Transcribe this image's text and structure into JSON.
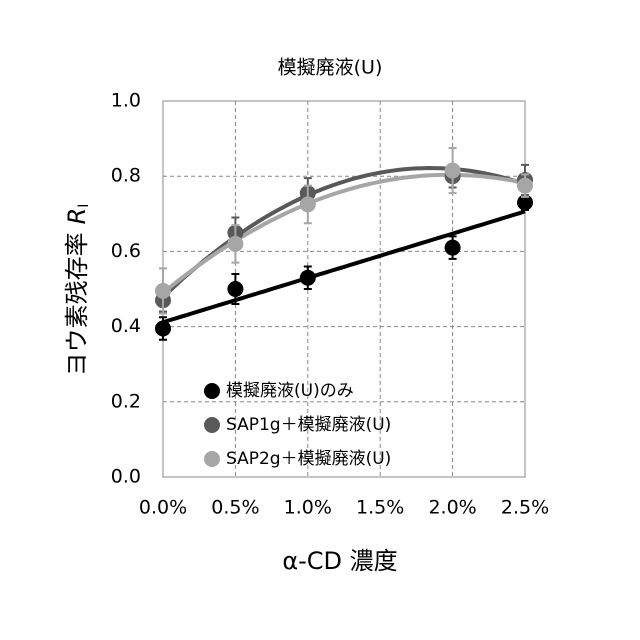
{
  "chart_data": {
    "type": "scatter",
    "title": "模擬廃液(U)",
    "x_label": "α-CD 濃度",
    "y_label": "ヨウ素残存率",
    "y_label_symbol": "R",
    "y_label_subscript": "I",
    "xlim": [
      0,
      2.5
    ],
    "xticks": [
      {
        "value": 0,
        "label": "0.0%"
      },
      {
        "value": 0.5,
        "label": "0.5%"
      },
      {
        "value": 1.0,
        "label": "1.0%"
      },
      {
        "value": 1.5,
        "label": "1.5%"
      },
      {
        "value": 2.0,
        "label": "2.0%"
      },
      {
        "value": 2.5,
        "label": "2.5%"
      }
    ],
    "ylim": [
      0,
      1
    ],
    "yticks": [
      {
        "value": 0,
        "label": "0.0"
      },
      0.2,
      0.4,
      0.6,
      0.8,
      {
        "value": 1,
        "label": "1.0"
      }
    ],
    "grid": true,
    "legend": "lower left",
    "series": [
      {
        "name": "模擬廃液(U)のみ",
        "color": "#000000",
        "trendline": "linear",
        "x": [
          0,
          0.5,
          1.0,
          2.0,
          2.5
        ],
        "values": [
          0.395,
          0.5,
          0.53,
          0.61,
          0.73
        ],
        "errors": [
          0.03,
          0.04,
          0.03,
          0.03,
          0.02
        ]
      },
      {
        "name": "SAP1g＋模擬廃液(U)",
        "color": "#595959",
        "trendline": "poly2",
        "x": [
          0,
          0.5,
          1.0,
          2.0,
          2.5
        ],
        "values": [
          0.47,
          0.65,
          0.755,
          0.8,
          0.79
        ],
        "errors": [
          0.03,
          0.04,
          0.04,
          0.03,
          0.04
        ]
      },
      {
        "name": "SAP2g＋模擬廃液(U)",
        "color": "#a6a6a6",
        "trendline": "poly2",
        "x": [
          0,
          0.5,
          1.0,
          2.0,
          2.5
        ],
        "values": [
          0.495,
          0.62,
          0.725,
          0.815,
          0.775
        ],
        "errors": [
          0.06,
          0.05,
          0.05,
          0.06,
          0.03
        ]
      }
    ]
  }
}
